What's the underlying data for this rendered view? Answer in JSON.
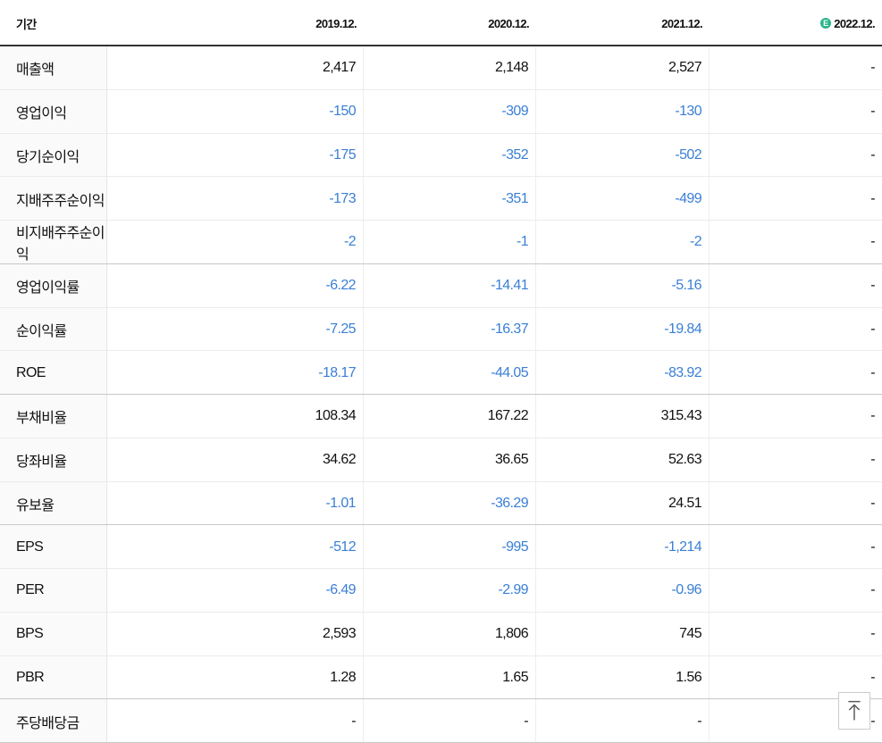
{
  "table": {
    "estimate_badge": "E",
    "header": [
      "기간",
      "2019.12.",
      "2020.12.",
      "2021.12.",
      "2022.12."
    ],
    "sections": [
      {
        "rows": [
          {
            "label": "매출액",
            "values": [
              "2,417",
              "2,148",
              "2,527",
              "-"
            ]
          },
          {
            "label": "영업이익",
            "values": [
              "-150",
              "-309",
              "-130",
              "-"
            ]
          },
          {
            "label": "당기순이익",
            "values": [
              "-175",
              "-352",
              "-502",
              "-"
            ]
          },
          {
            "label": "지배주주순이익",
            "values": [
              "-173",
              "-351",
              "-499",
              "-"
            ]
          },
          {
            "label": "비지배주주순이익",
            "values": [
              "-2",
              "-1",
              "-2",
              "-"
            ]
          }
        ]
      },
      {
        "rows": [
          {
            "label": "영업이익률",
            "values": [
              "-6.22",
              "-14.41",
              "-5.16",
              "-"
            ]
          },
          {
            "label": "순이익률",
            "values": [
              "-7.25",
              "-16.37",
              "-19.84",
              "-"
            ]
          },
          {
            "label": "ROE",
            "values": [
              "-18.17",
              "-44.05",
              "-83.92",
              "-"
            ]
          }
        ]
      },
      {
        "rows": [
          {
            "label": "부채비율",
            "values": [
              "108.34",
              "167.22",
              "315.43",
              "-"
            ]
          },
          {
            "label": "당좌비율",
            "values": [
              "34.62",
              "36.65",
              "52.63",
              "-"
            ]
          },
          {
            "label": "유보율",
            "values": [
              "-1.01",
              "-36.29",
              "24.51",
              "-"
            ]
          }
        ]
      },
      {
        "rows": [
          {
            "label": "EPS",
            "values": [
              "-512",
              "-995",
              "-1,214",
              "-"
            ]
          },
          {
            "label": "PER",
            "values": [
              "-6.49",
              "-2.99",
              "-0.96",
              "-"
            ]
          },
          {
            "label": "BPS",
            "values": [
              "2,593",
              "1,806",
              "745",
              "-"
            ]
          },
          {
            "label": "PBR",
            "values": [
              "1.28",
              "1.65",
              "1.56",
              "-"
            ]
          }
        ]
      },
      {
        "rows": [
          {
            "label": "주당배당금",
            "values": [
              "-",
              "-",
              "-",
              "-"
            ]
          }
        ]
      }
    ]
  }
}
